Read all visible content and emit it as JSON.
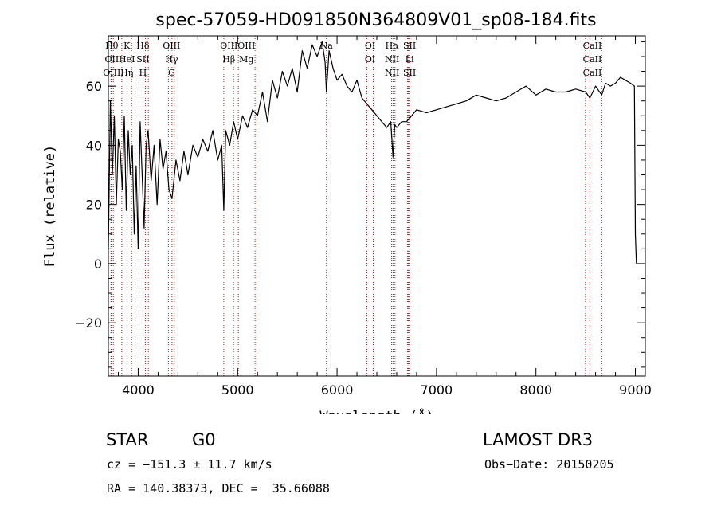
{
  "chart_data": {
    "type": "line",
    "title": "spec-57059-HD091850N364809V01_sp08-184.fits",
    "xlabel": "Wavelength (Å)",
    "ylabel": "Flux (relative)",
    "xlim": [
      3700,
      9100
    ],
    "ylim": [
      -38,
      77
    ],
    "xticks": [
      4000,
      5000,
      6000,
      7000,
      8000,
      9000
    ],
    "yticks": [
      -20,
      0,
      20,
      40,
      60
    ],
    "series": [
      {
        "name": "Flux",
        "x": [
          3700,
          3720,
          3740,
          3760,
          3780,
          3800,
          3820,
          3840,
          3860,
          3880,
          3900,
          3920,
          3940,
          3960,
          3980,
          4000,
          4020,
          4040,
          4060,
          4080,
          4100,
          4130,
          4160,
          4190,
          4220,
          4250,
          4280,
          4310,
          4340,
          4380,
          4420,
          4460,
          4500,
          4550,
          4600,
          4650,
          4700,
          4750,
          4800,
          4840,
          4861,
          4880,
          4920,
          4960,
          5000,
          5050,
          5100,
          5150,
          5200,
          5250,
          5300,
          5350,
          5400,
          5450,
          5500,
          5550,
          5600,
          5650,
          5700,
          5750,
          5800,
          5850,
          5880,
          5893,
          5920,
          5960,
          6000,
          6050,
          6100,
          6150,
          6200,
          6250,
          6300,
          6350,
          6400,
          6450,
          6500,
          6540,
          6563,
          6580,
          6600,
          6650,
          6700,
          6750,
          6800,
          6900,
          7000,
          7100,
          7200,
          7300,
          7400,
          7500,
          7600,
          7700,
          7800,
          7900,
          8000,
          8100,
          8200,
          8300,
          8400,
          8500,
          8542,
          8600,
          8662,
          8700,
          8750,
          8800,
          8850,
          8900,
          8950,
          8990,
          9000,
          9010
        ],
        "values": [
          5,
          55,
          30,
          50,
          20,
          42,
          38,
          25,
          50,
          18,
          45,
          30,
          40,
          10,
          33,
          5,
          48,
          30,
          12,
          40,
          45,
          28,
          40,
          20,
          42,
          32,
          38,
          25,
          22,
          35,
          28,
          38,
          30,
          40,
          36,
          42,
          38,
          45,
          35,
          40,
          18,
          45,
          40,
          48,
          42,
          50,
          46,
          52,
          50,
          58,
          48,
          62,
          56,
          65,
          60,
          66,
          58,
          72,
          66,
          74,
          70,
          75,
          68,
          58,
          72,
          66,
          62,
          64,
          60,
          58,
          62,
          56,
          54,
          52,
          50,
          48,
          46,
          48,
          36,
          47,
          46,
          48,
          48,
          50,
          52,
          51,
          52,
          53,
          54,
          55,
          57,
          56,
          55,
          56,
          58,
          60,
          57,
          59,
          58,
          58,
          59,
          58,
          56,
          60,
          57,
          61,
          60,
          61,
          63,
          62,
          61,
          60,
          10,
          0
        ]
      }
    ],
    "line_groups": [
      {
        "labels": [
          "Hθ",
          "OII",
          "OIII"
        ],
        "x": [
          3750,
          3727,
          3727
        ]
      },
      {
        "labels": [
          "K",
          "HeI",
          "Hη"
        ],
        "x": [
          3934,
          3889,
          3835
        ]
      },
      {
        "labels": [
          "Hδ",
          "SII",
          "H"
        ],
        "x": [
          4102,
          4072,
          3969
        ]
      },
      {
        "labels": [
          "OIII",
          "Hγ",
          "G"
        ],
        "x": [
          4363,
          4340,
          4304
        ]
      },
      {
        "labels": [
          "OIII",
          "OIII",
          "Hβ",
          "Mg"
        ],
        "x": [
          5007,
          4959,
          4861,
          5175
        ]
      },
      {
        "labels": [
          "Na"
        ],
        "x": [
          5893
        ]
      },
      {
        "labels": [
          "OI",
          "OI"
        ],
        "x": [
          6300,
          6364
        ]
      },
      {
        "labels": [
          "Hα",
          "SII",
          "NII",
          "Li",
          "NII",
          "SII"
        ],
        "x": [
          6563,
          6716,
          6548,
          6708,
          6583,
          6731
        ]
      },
      {
        "labels": [
          "CaII",
          "CaII",
          "CaII"
        ],
        "x": [
          8542,
          8498,
          8662
        ]
      }
    ],
    "line_color": "#b02020",
    "trace_color": "#000000"
  },
  "info": {
    "object_class": "STAR",
    "subclass": "G0",
    "survey": "LAMOST DR3",
    "cz": "cz = −151.3 ± 11.7 km/s",
    "obs_date": "Obs−Date: 20150205",
    "coords": "RA = 140.38373, DEC =  35.66088"
  }
}
